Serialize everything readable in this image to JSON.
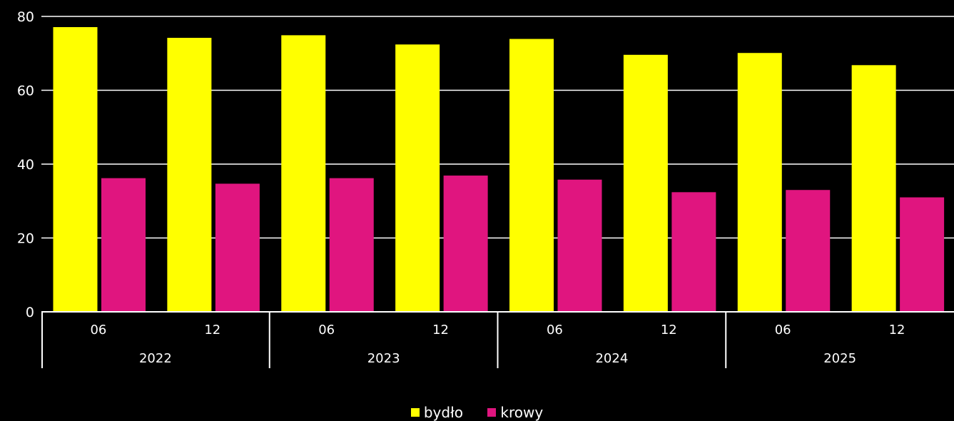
{
  "chart_data": {
    "type": "bar",
    "groups": [
      {
        "label": "2022",
        "categories": [
          "06",
          "12"
        ]
      },
      {
        "label": "2023",
        "categories": [
          "06",
          "12"
        ]
      },
      {
        "label": "2024",
        "categories": [
          "06",
          "12"
        ]
      },
      {
        "label": "2025",
        "categories": [
          "06",
          "12"
        ]
      }
    ],
    "series": [
      {
        "name": "bydło",
        "color": "#ffff00",
        "values": [
          77.1,
          74.2,
          74.9,
          72.4,
          73.9,
          69.6,
          70.1,
          66.8
        ]
      },
      {
        "name": "krowy",
        "color": "#e0157f",
        "values": [
          36.2,
          34.7,
          36.2,
          36.9,
          35.8,
          32.4,
          33.0,
          31.0
        ]
      }
    ],
    "ylim": [
      0,
      80
    ],
    "yticks": [
      0,
      20,
      40,
      60,
      80
    ],
    "grid": true,
    "legend": "bottom"
  }
}
